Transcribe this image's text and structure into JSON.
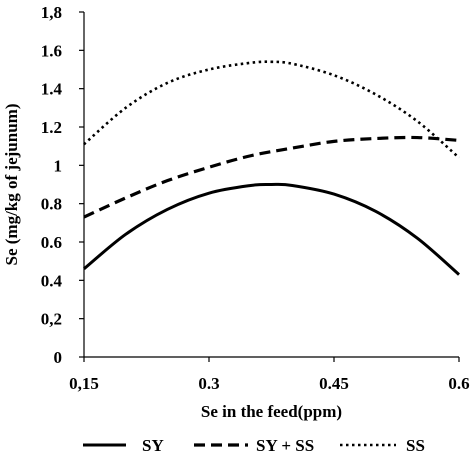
{
  "chart_data": {
    "type": "line",
    "xlabel": "Se in the feed(ppm)",
    "ylabel": "Se (mg/kg of jejunum)",
    "xlim": [
      0.15,
      0.6
    ],
    "ylim": [
      0,
      1.8
    ],
    "x_ticks": [
      {
        "value": 0.15,
        "label": "0,15"
      },
      {
        "value": 0.3,
        "label": "0.3"
      },
      {
        "value": 0.45,
        "label": "0.45"
      },
      {
        "value": 0.6,
        "label": "0.6"
      }
    ],
    "y_ticks": [
      {
        "value": 0,
        "label": "0"
      },
      {
        "value": 0.2,
        "label": "0,2"
      },
      {
        "value": 0.4,
        "label": "0.4"
      },
      {
        "value": 0.6,
        "label": "0.6"
      },
      {
        "value": 0.8,
        "label": "0.8"
      },
      {
        "value": 1.0,
        "label": "1"
      },
      {
        "value": 1.2,
        "label": "1.2"
      },
      {
        "value": 1.4,
        "label": "1.4"
      },
      {
        "value": 1.6,
        "label": "1.6"
      },
      {
        "value": 1.8,
        "label": "1,8"
      }
    ],
    "grid": false,
    "legend": "bottom",
    "series": [
      {
        "name": "SY",
        "style": "solid",
        "x": [
          0.15,
          0.2,
          0.25,
          0.3,
          0.35,
          0.375,
          0.4,
          0.45,
          0.5,
          0.55,
          0.6
        ],
        "y": [
          0.46,
          0.64,
          0.77,
          0.855,
          0.895,
          0.9,
          0.895,
          0.85,
          0.76,
          0.62,
          0.43
        ]
      },
      {
        "name": "SY + SS",
        "style": "dashed",
        "x": [
          0.15,
          0.2,
          0.25,
          0.3,
          0.35,
          0.4,
          0.45,
          0.5,
          0.55,
          0.6
        ],
        "y": [
          0.73,
          0.83,
          0.92,
          0.99,
          1.05,
          1.09,
          1.125,
          1.14,
          1.145,
          1.13
        ]
      },
      {
        "name": "SS",
        "style": "dotted",
        "x": [
          0.15,
          0.2,
          0.25,
          0.3,
          0.35,
          0.375,
          0.4,
          0.45,
          0.5,
          0.55,
          0.6
        ],
        "y": [
          1.11,
          1.3,
          1.43,
          1.5,
          1.535,
          1.54,
          1.53,
          1.47,
          1.37,
          1.23,
          1.04
        ]
      }
    ]
  }
}
